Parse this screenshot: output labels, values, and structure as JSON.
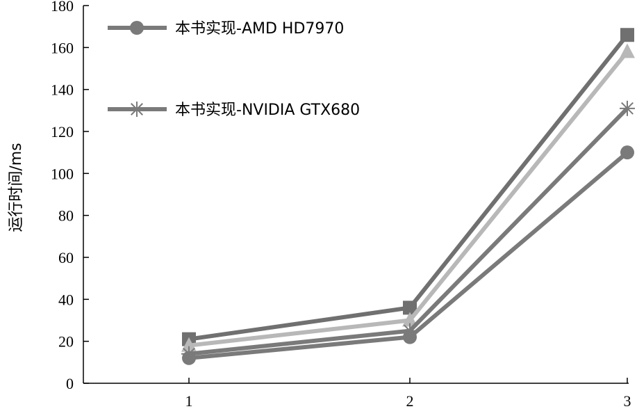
{
  "chart_data": {
    "type": "line",
    "ylabel": "运行时间/ms",
    "xlabel": "",
    "categories": [
      "1",
      "2",
      "3"
    ],
    "yticks": [
      "0",
      "20",
      "40",
      "60",
      "80",
      "100",
      "120",
      "140",
      "160",
      "180"
    ],
    "ylim": [
      0,
      180
    ],
    "grid": false,
    "legend_position": "top-left",
    "series": [
      {
        "name": "本书实现-AMD HD7970",
        "marker": "circle",
        "color": "#7a7a7a",
        "values": [
          12,
          22,
          110
        ]
      },
      {
        "name": "本书实现-NVIDIA GTX680",
        "marker": "star",
        "color": "#7a7a7a",
        "values": [
          14,
          25,
          131
        ]
      },
      {
        "marker": "triangle",
        "color": "#b8b8b8",
        "values": [
          18,
          30,
          158
        ]
      },
      {
        "marker": "square",
        "color": "#707070",
        "values": [
          21,
          36,
          166
        ]
      }
    ]
  }
}
